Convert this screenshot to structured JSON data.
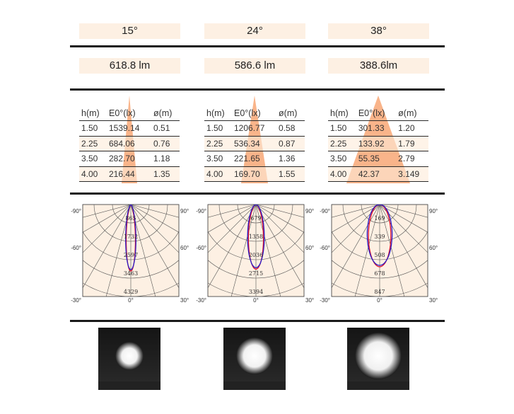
{
  "columns": [
    {
      "beam_angle": "15°",
      "lumen": "618.8 lm",
      "table": {
        "headers": [
          "h(m)",
          "E0°(lx)",
          "ø(m)"
        ],
        "rows": [
          [
            "1.50",
            "1539.14",
            "0.51"
          ],
          [
            "2.25",
            "684.06",
            "0.76"
          ],
          [
            "3.50",
            "282.70",
            "1.18"
          ],
          [
            "4.00",
            "216.44",
            "1.35"
          ]
        ]
      },
      "polar": {
        "angles_left": [
          "-90°",
          "-60°",
          "-30°"
        ],
        "angles_right": [
          "90°",
          "60°",
          "30°"
        ],
        "angle_bottom": "0°",
        "rings": [
          "865",
          "1732",
          "2597",
          "3463",
          "4329"
        ]
      }
    },
    {
      "beam_angle": "24°",
      "lumen": "586.6 lm",
      "table": {
        "headers": [
          "h(m)",
          "E0°(lx)",
          "ø(m)"
        ],
        "rows": [
          [
            "1.50",
            "1206.77",
            "0.58"
          ],
          [
            "2.25",
            "536.34",
            "0.87"
          ],
          [
            "3.50",
            "221.65",
            "1.36"
          ],
          [
            "4.00",
            "169.70",
            "1.55"
          ]
        ]
      },
      "polar": {
        "angles_left": [
          "-90°",
          "-60°",
          "-30°"
        ],
        "angles_right": [
          "90°",
          "60°",
          "30°"
        ],
        "angle_bottom": "0°",
        "rings": [
          "679",
          "1358",
          "2036",
          "2715",
          "3394"
        ]
      }
    },
    {
      "beam_angle": "38°",
      "lumen": "388.6lm",
      "table": {
        "headers": [
          "h(m)",
          "E0°(lx)",
          "ø(m)"
        ],
        "rows": [
          [
            "1.50",
            "301.33",
            "1.20"
          ],
          [
            "2.25",
            "133.92",
            "1.79"
          ],
          [
            "3.50",
            "55.35",
            "2.79"
          ],
          [
            "4.00",
            "42.37",
            "3.149"
          ]
        ]
      },
      "polar": {
        "angles_left": [
          "-90°",
          "-60°",
          "-30°"
        ],
        "angles_right": [
          "90°",
          "60°",
          "30°"
        ],
        "angle_bottom": "0°",
        "rings": [
          "169",
          "339",
          "508",
          "678",
          "847"
        ]
      }
    }
  ],
  "colors": {
    "pill_bg": "#fdf0e3",
    "cone": "#f9b48a",
    "polar_bg": "#fdf0e3",
    "curve_red": "#e0102a",
    "curve_blue": "#2a1ec8"
  }
}
